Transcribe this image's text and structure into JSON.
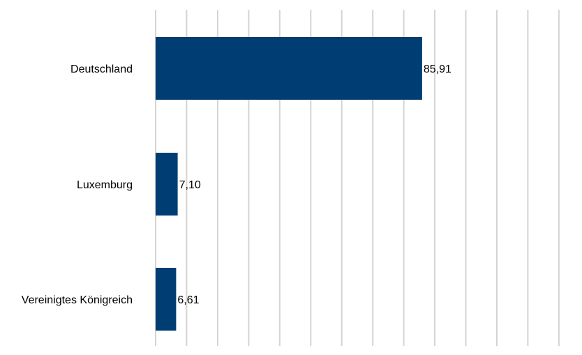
{
  "chart_data": {
    "type": "bar",
    "orientation": "horizontal",
    "categories": [
      "Deutschland",
      "Luxemburg",
      "Vereinigtes Königreich"
    ],
    "values": [
      85.91,
      7.1,
      6.61
    ],
    "value_labels": [
      "85,91",
      "7,10",
      "6,61"
    ],
    "xlim": [
      0,
      130
    ],
    "grid_step": 10,
    "grid": true,
    "title": "",
    "xlabel": "",
    "ylabel": "",
    "colors": {
      "bar": "#003d73",
      "grid": "#d4d4d4"
    }
  }
}
